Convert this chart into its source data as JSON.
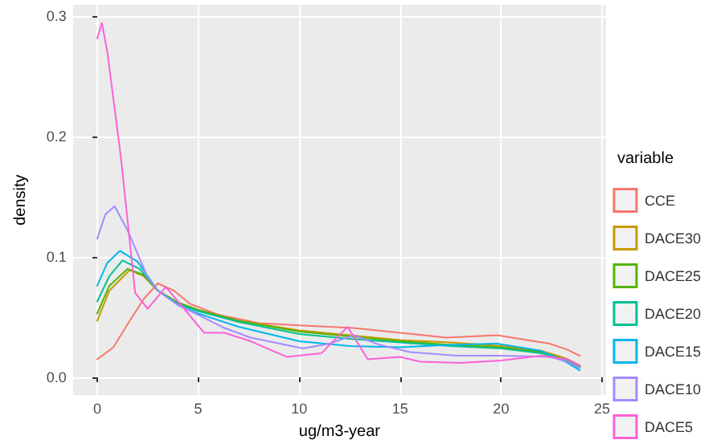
{
  "chart_data": {
    "type": "line",
    "xlabel": "ug/m3-year",
    "ylabel": "density",
    "legend_title": "variable",
    "legend": "right",
    "grid": true,
    "line_style": "solid",
    "marker": "none",
    "xlim": [
      -1.2,
      25.2
    ],
    "ylim": [
      -0.0147,
      0.309
    ],
    "xticks": [
      0,
      5,
      10,
      15,
      20,
      25
    ],
    "yticks": [
      {
        "value": 0,
        "label": "0.0"
      },
      {
        "value": 0.1,
        "label": "0.1"
      },
      {
        "value": 0.2,
        "label": "0.2"
      },
      {
        "value": 0.3,
        "label": "0.3"
      }
    ],
    "series": [
      {
        "name": "CCE",
        "color": "#f8766d",
        "x": [
          0,
          0.8,
          1.5,
          2.3,
          3.0,
          3.8,
          4.6,
          6,
          8,
          10.2,
          12.7,
          15,
          17.3,
          19.8,
          22.4,
          23.3,
          23.9
        ],
        "values": [
          0.015,
          0.025,
          0.044,
          0.065,
          0.078,
          0.072,
          0.061,
          0.052,
          0.045,
          0.043,
          0.041,
          0.037,
          0.033,
          0.035,
          0.028,
          0.023,
          0.018
        ]
      },
      {
        "name": "DACE30",
        "color": "#c49a00",
        "x": [
          0,
          0.6,
          1.6,
          2.3,
          3.0,
          4,
          5,
          7,
          10,
          12.5,
          15,
          17.5,
          20,
          22,
          23.2,
          23.9
        ],
        "values": [
          0.047,
          0.072,
          0.089,
          0.084,
          0.072,
          0.062,
          0.056,
          0.047,
          0.039,
          0.035,
          0.031,
          0.029,
          0.026,
          0.022,
          0.016,
          0.01
        ]
      },
      {
        "name": "DACE25",
        "color": "#53b400",
        "x": [
          0,
          0.6,
          1.5,
          2.3,
          3.0,
          4,
          5,
          7,
          10,
          12.5,
          15,
          17.5,
          20,
          22,
          23.2,
          23.9
        ],
        "values": [
          0.053,
          0.076,
          0.09,
          0.085,
          0.072,
          0.062,
          0.056,
          0.047,
          0.038,
          0.034,
          0.03,
          0.027,
          0.025,
          0.021,
          0.015,
          0.009
        ]
      },
      {
        "name": "DACE20",
        "color": "#00c094",
        "x": [
          0,
          0.6,
          1.25,
          2.1,
          3.0,
          4,
          5,
          7,
          10,
          12.5,
          15,
          17.5,
          20,
          22,
          23.2,
          23.9
        ],
        "values": [
          0.063,
          0.084,
          0.097,
          0.09,
          0.072,
          0.061,
          0.055,
          0.046,
          0.036,
          0.032,
          0.029,
          0.026,
          0.024,
          0.02,
          0.014,
          0.008
        ]
      },
      {
        "name": "DACE15",
        "color": "#00b6eb",
        "x": [
          0,
          0.5,
          1.12,
          2.0,
          3.0,
          4,
          5,
          7,
          10,
          12.5,
          15,
          17.5,
          19.8,
          22,
          23.2,
          23.9
        ],
        "values": [
          0.076,
          0.095,
          0.105,
          0.096,
          0.072,
          0.06,
          0.053,
          0.042,
          0.03,
          0.026,
          0.025,
          0.027,
          0.028,
          0.022,
          0.013,
          0.006
        ]
      },
      {
        "name": "DACE10",
        "color": "#a58aff",
        "x": [
          0,
          0.4,
          0.86,
          1.5,
          2.5,
          3.0,
          4,
          5,
          6.3,
          7.6,
          10.2,
          11.5,
          12.7,
          14,
          15.5,
          17.8,
          20,
          22.4,
          23.3,
          23.9
        ],
        "values": [
          0.115,
          0.135,
          0.142,
          0.122,
          0.083,
          0.072,
          0.06,
          0.052,
          0.041,
          0.033,
          0.024,
          0.028,
          0.035,
          0.027,
          0.021,
          0.018,
          0.018,
          0.017,
          0.013,
          0.008
        ]
      },
      {
        "name": "DACE5",
        "color": "#fb61d7",
        "x": [
          0,
          0.23,
          0.5,
          1.17,
          1.88,
          2.5,
          3.4,
          4.55,
          5.3,
          6.3,
          7.6,
          9.4,
          11.1,
          12.4,
          13.4,
          15,
          16,
          18,
          20,
          22,
          23.3,
          23.9
        ],
        "values": [
          0.281,
          0.294,
          0.27,
          0.183,
          0.07,
          0.057,
          0.075,
          0.052,
          0.037,
          0.037,
          0.03,
          0.017,
          0.02,
          0.042,
          0.015,
          0.017,
          0.013,
          0.012,
          0.014,
          0.018,
          0.015,
          0.01
        ]
      }
    ]
  }
}
